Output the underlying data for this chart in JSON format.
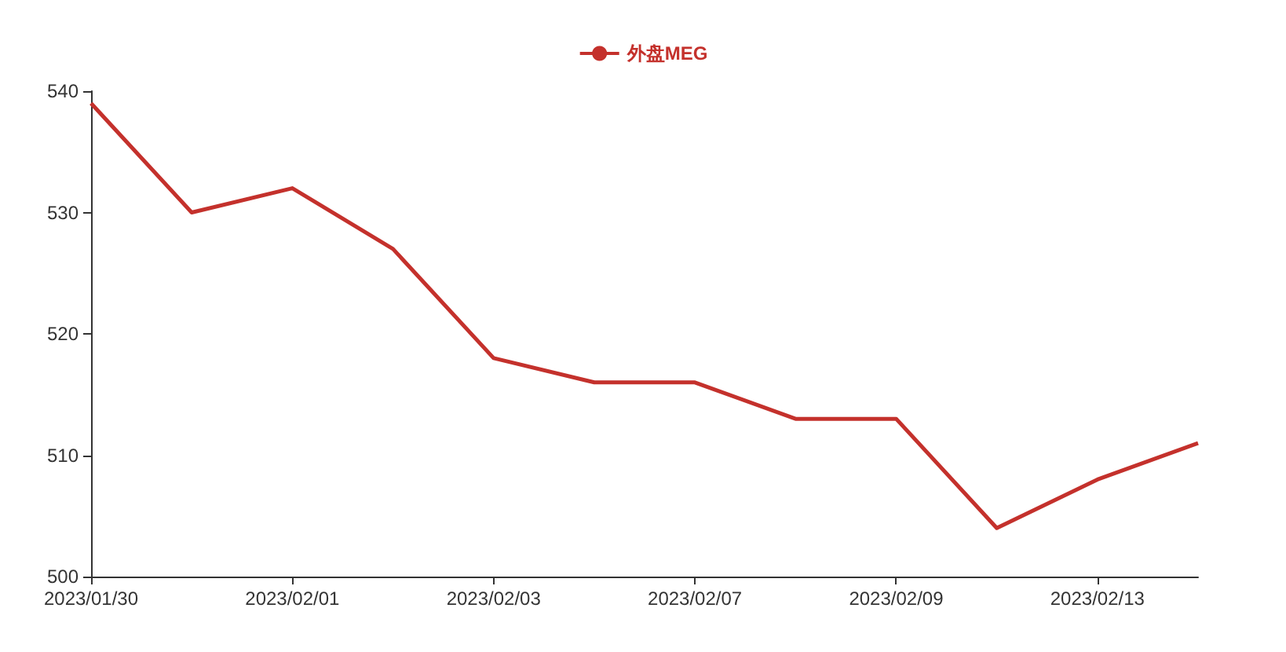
{
  "chart_data": {
    "type": "line",
    "categories": [
      "2023/01/30",
      null,
      "2023/02/01",
      null,
      "2023/02/03",
      null,
      "2023/02/07",
      null,
      "2023/02/09",
      null,
      "2023/02/13",
      null
    ],
    "series": [
      {
        "name": "外盘MEG",
        "color": "#c4312c",
        "values": [
          539,
          530,
          532,
          527,
          518,
          516,
          516,
          513,
          513,
          504,
          508,
          511
        ]
      }
    ],
    "ylim": [
      500,
      540
    ],
    "yticks": [
      500,
      510,
      520,
      530,
      540
    ],
    "grid": false,
    "legend": "top",
    "marker": "none",
    "line_style": "solid"
  }
}
